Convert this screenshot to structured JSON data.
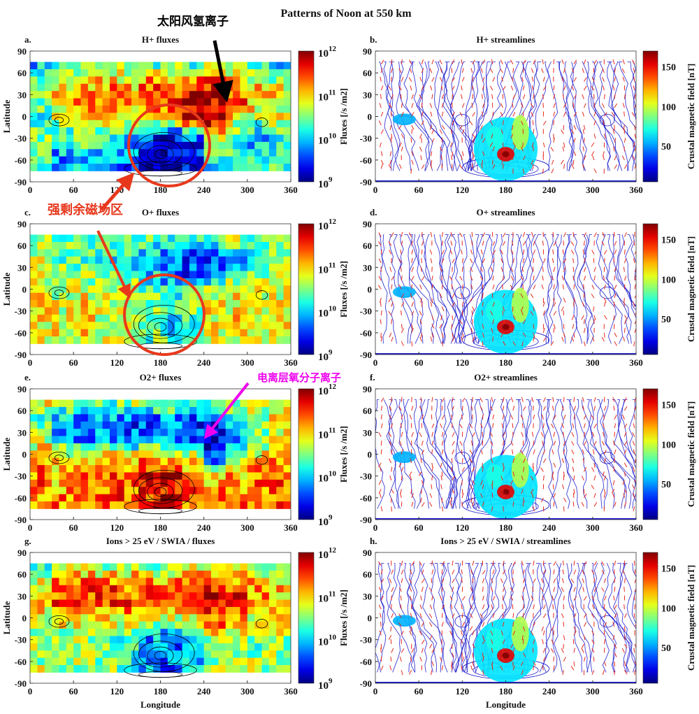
{
  "figure_title": "Patterns of Noon at 550 km",
  "annotations": {
    "solar_wind_h": {
      "text": "太阳风氢离子",
      "color": "#000000"
    },
    "strong_crustal": {
      "text": "强剩余磁场区",
      "color": "#e8381c"
    },
    "ionospheric_o2": {
      "text": "电离层氧分子离子",
      "color": "#ee00ee"
    }
  },
  "colors": {
    "contour": "#000000",
    "streamline": "#1a1acc",
    "arrow": "#e8281c",
    "highlight_circle": "#e8381c"
  },
  "axes": {
    "xlabel": "Longitude",
    "ylabel": "Latitude",
    "xticks": [
      "0",
      "60",
      "120",
      "180",
      "240",
      "300",
      "360"
    ],
    "yticks": [
      "90",
      "60",
      "30",
      "0",
      "-30",
      "-60",
      "-90"
    ],
    "xlim": [
      0,
      360
    ],
    "ylim": [
      -90,
      90
    ]
  },
  "flux_colorbar": {
    "label": "Fluxes  [/s /m2]",
    "scale": "log",
    "range": [
      1000000000.0,
      1000000000000.0
    ],
    "ticks": [
      {
        "base": "10",
        "exp": "12"
      },
      {
        "base": "10",
        "exp": "11"
      },
      {
        "base": "10",
        "exp": "10"
      },
      {
        "base": "10",
        "exp": "9"
      }
    ],
    "colormap": "jet"
  },
  "field_colorbar": {
    "label": "Crustal magnetic field  [nT]",
    "range": [
      5,
      170
    ],
    "ticks": [
      "150",
      "100",
      "50"
    ],
    "colormap": "jet"
  },
  "chart_data": [
    {
      "panel": "a.",
      "title": "H+ fluxes",
      "type": "heatmap",
      "value_units": "log10 flux [/s /m2]",
      "lat_bands": [
        70,
        50,
        25,
        0,
        -25,
        -50,
        -70
      ],
      "lon_bins_start": [
        0,
        30,
        60,
        90,
        120,
        150,
        180,
        210,
        240,
        270,
        300,
        330
      ],
      "values": [
        [
          10.0,
          10.3,
          10.5,
          10.4,
          10.6,
          10.4,
          10.5,
          10.3,
          10.6,
          10.4,
          10.2,
          10.0
        ],
        [
          10.3,
          10.8,
          11.0,
          11.2,
          11.0,
          11.3,
          11.2,
          11.5,
          11.6,
          11.2,
          11.0,
          10.8
        ],
        [
          10.4,
          11.0,
          11.3,
          11.4,
          11.3,
          11.4,
          11.5,
          11.7,
          11.8,
          11.4,
          11.1,
          11.0
        ],
        [
          10.2,
          10.6,
          10.7,
          10.9,
          10.7,
          10.8,
          10.9,
          11.6,
          11.8,
          10.8,
          10.5,
          10.7
        ],
        [
          10.5,
          10.3,
          10.4,
          10.2,
          10.0,
          9.5,
          9.3,
          9.6,
          11.0,
          10.4,
          10.0,
          10.3
        ],
        [
          10.3,
          9.8,
          10.1,
          9.9,
          9.8,
          9.3,
          9.2,
          9.4,
          10.2,
          10.2,
          10.1,
          10.2
        ],
        [
          10.4,
          10.0,
          9.9,
          10.0,
          9.7,
          9.2,
          9.1,
          9.3,
          10.0,
          10.3,
          10.2,
          10.4
        ]
      ]
    },
    {
      "panel": "b.",
      "title": "H+ streamlines",
      "type": "streamlines"
    },
    {
      "panel": "c.",
      "title": "O+ fluxes",
      "type": "heatmap",
      "value_units": "log10 flux [/s /m2]",
      "lat_bands": [
        70,
        50,
        25,
        0,
        -25,
        -50,
        -70
      ],
      "lon_bins_start": [
        0,
        30,
        60,
        90,
        120,
        150,
        180,
        210,
        240,
        270,
        300,
        330
      ],
      "values": [
        [
          10.6,
          10.5,
          10.4,
          10.6,
          10.3,
          10.4,
          10.2,
          10.3,
          10.5,
          10.6,
          10.5,
          10.6
        ],
        [
          10.7,
          10.4,
          10.2,
          10.0,
          10.1,
          9.9,
          9.7,
          9.5,
          9.6,
          10.0,
          10.3,
          10.6
        ],
        [
          10.8,
          10.6,
          10.5,
          10.4,
          10.3,
          10.0,
          9.8,
          9.6,
          9.8,
          10.3,
          10.6,
          10.8
        ],
        [
          10.8,
          10.7,
          10.8,
          10.7,
          10.6,
          10.4,
          10.3,
          10.5,
          10.7,
          10.8,
          10.7,
          10.8
        ],
        [
          10.9,
          10.8,
          10.9,
          10.8,
          10.7,
          10.4,
          10.2,
          10.5,
          10.8,
          10.9,
          10.8,
          10.9
        ],
        [
          10.9,
          10.8,
          10.9,
          10.8,
          10.6,
          10.3,
          10.1,
          10.4,
          10.8,
          10.9,
          10.9,
          10.9
        ],
        [
          10.9,
          10.9,
          10.8,
          10.9,
          10.7,
          10.5,
          10.4,
          10.6,
          10.9,
          10.9,
          10.8,
          10.9
        ]
      ]
    },
    {
      "panel": "d.",
      "title": "O+ streamlines",
      "type": "streamlines"
    },
    {
      "panel": "e.",
      "title": "O2+ fluxes",
      "type": "heatmap",
      "value_units": "log10 flux [/s /m2]",
      "lat_bands": [
        70,
        50,
        25,
        0,
        -25,
        -50,
        -70
      ],
      "lon_bins_start": [
        0,
        30,
        60,
        90,
        120,
        150,
        180,
        210,
        240,
        270,
        300,
        330
      ],
      "values": [
        [
          10.8,
          10.7,
          10.5,
          10.4,
          10.6,
          10.5,
          10.6,
          10.4,
          10.5,
          10.7,
          10.9,
          11.0
        ],
        [
          10.3,
          9.8,
          9.6,
          9.7,
          9.5,
          9.6,
          9.7,
          9.5,
          9.4,
          9.8,
          10.4,
          10.8
        ],
        [
          10.6,
          10.0,
          9.8,
          9.9,
          9.7,
          9.8,
          9.9,
          9.6,
          9.3,
          9.9,
          10.5,
          10.9
        ],
        [
          11.2,
          11.0,
          10.9,
          11.0,
          11.1,
          11.2,
          11.2,
          10.8,
          9.5,
          10.4,
          11.0,
          11.2
        ],
        [
          11.3,
          11.1,
          11.2,
          11.3,
          11.4,
          11.6,
          11.7,
          11.3,
          11.0,
          11.1,
          11.2,
          11.3
        ],
        [
          11.3,
          11.2,
          11.3,
          11.3,
          11.4,
          11.6,
          11.7,
          11.4,
          11.2,
          11.2,
          11.3,
          11.3
        ],
        [
          11.2,
          11.3,
          11.2,
          11.3,
          11.3,
          11.4,
          11.5,
          11.3,
          11.2,
          11.3,
          11.2,
          11.3
        ]
      ]
    },
    {
      "panel": "f.",
      "title": "O2+ streamlines",
      "type": "streamlines"
    },
    {
      "panel": "g.",
      "title": "Ions > 25 eV / SWIA / fluxes",
      "type": "heatmap",
      "value_units": "log10 flux [/s /m2]",
      "lat_bands": [
        70,
        50,
        25,
        0,
        -25,
        -50,
        -70
      ],
      "lon_bins_start": [
        0,
        30,
        60,
        90,
        120,
        150,
        180,
        210,
        240,
        270,
        300,
        330
      ],
      "values": [
        [
          10.4,
          10.6,
          10.8,
          10.6,
          10.7,
          10.5,
          10.6,
          10.7,
          10.8,
          10.6,
          10.5,
          10.4
        ],
        [
          10.9,
          11.3,
          11.5,
          11.4,
          11.3,
          11.4,
          11.3,
          11.5,
          11.6,
          11.4,
          11.2,
          11.0
        ],
        [
          11.0,
          11.4,
          11.5,
          11.4,
          11.5,
          11.5,
          11.4,
          11.6,
          11.7,
          11.6,
          11.3,
          11.1
        ],
        [
          10.7,
          10.9,
          10.8,
          10.9,
          10.8,
          10.6,
          10.5,
          10.8,
          11.4,
          11.2,
          10.8,
          10.9
        ],
        [
          10.6,
          10.5,
          10.6,
          10.4,
          10.3,
          9.9,
          9.8,
          10.0,
          10.6,
          10.7,
          10.4,
          10.6
        ],
        [
          10.6,
          10.5,
          10.6,
          10.5,
          10.2,
          9.7,
          9.6,
          9.9,
          10.6,
          10.7,
          10.6,
          10.6
        ],
        [
          10.7,
          10.6,
          10.5,
          10.6,
          10.4,
          9.9,
          9.8,
          10.1,
          10.6,
          10.7,
          10.6,
          10.7
        ]
      ]
    },
    {
      "panel": "h.",
      "title": "Ions > 25 eV / SWIA / streamlines",
      "type": "streamlines"
    }
  ]
}
